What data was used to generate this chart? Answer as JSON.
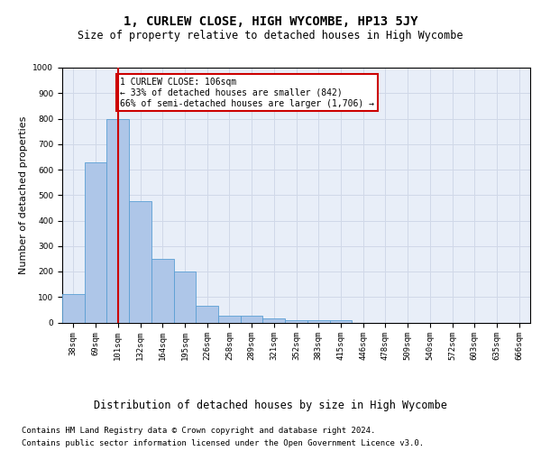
{
  "title": "1, CURLEW CLOSE, HIGH WYCOMBE, HP13 5JY",
  "subtitle": "Size of property relative to detached houses in High Wycombe",
  "xlabel": "Distribution of detached houses by size in High Wycombe",
  "ylabel": "Number of detached properties",
  "bar_labels": [
    "38sqm",
    "69sqm",
    "101sqm",
    "132sqm",
    "164sqm",
    "195sqm",
    "226sqm",
    "258sqm",
    "289sqm",
    "321sqm",
    "352sqm",
    "383sqm",
    "415sqm",
    "446sqm",
    "478sqm",
    "509sqm",
    "540sqm",
    "572sqm",
    "603sqm",
    "635sqm",
    "666sqm"
  ],
  "bar_values": [
    110,
    630,
    800,
    475,
    250,
    200,
    65,
    28,
    25,
    15,
    10,
    10,
    10,
    0,
    0,
    0,
    0,
    0,
    0,
    0,
    0
  ],
  "bar_color": "#aec6e8",
  "bar_edge_color": "#5a9fd4",
  "vline_x": 2,
  "vline_color": "#cc0000",
  "annotation_text": "1 CURLEW CLOSE: 106sqm\n← 33% of detached houses are smaller (842)\n66% of semi-detached houses are larger (1,706) →",
  "annotation_box_color": "#ffffff",
  "annotation_box_edgecolor": "#cc0000",
  "ylim": [
    0,
    1000
  ],
  "yticks": [
    0,
    100,
    200,
    300,
    400,
    500,
    600,
    700,
    800,
    900,
    1000
  ],
  "grid_color": "#d0d8e8",
  "background_color": "#e8eef8",
  "footer_line1": "Contains HM Land Registry data © Crown copyright and database right 2024.",
  "footer_line2": "Contains public sector information licensed under the Open Government Licence v3.0.",
  "title_fontsize": 10,
  "subtitle_fontsize": 8.5,
  "xlabel_fontsize": 8.5,
  "ylabel_fontsize": 8,
  "tick_fontsize": 6.5,
  "footer_fontsize": 6.5
}
